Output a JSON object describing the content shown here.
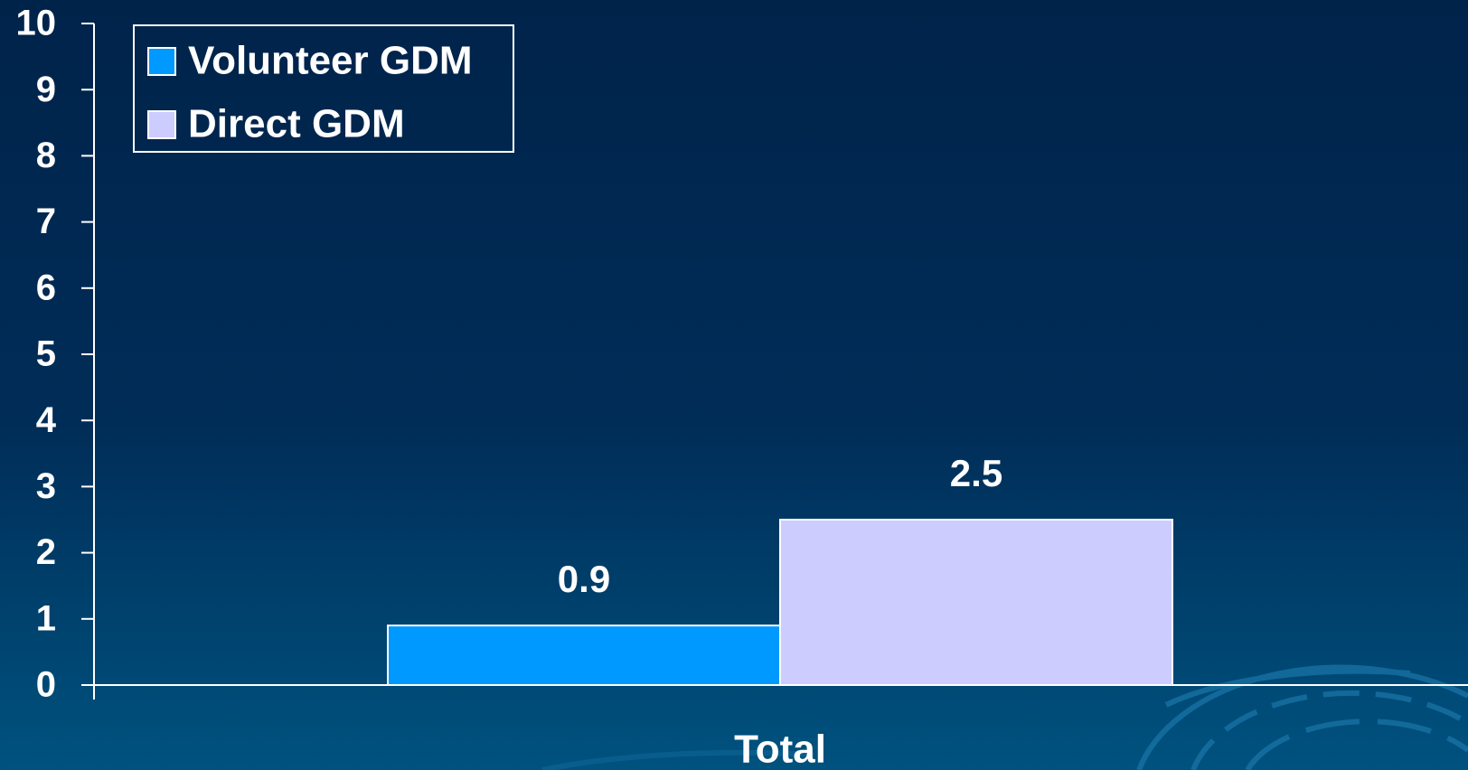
{
  "chart_data": {
    "type": "bar",
    "categories": [
      "Total"
    ],
    "series": [
      {
        "name": "Volunteer GDM",
        "color": "#0099ff",
        "values": [
          0.9
        ]
      },
      {
        "name": "Direct GDM",
        "color": "#ccccff",
        "values": [
          2.5
        ]
      }
    ],
    "ylim": [
      0,
      10
    ],
    "yticks": [
      0,
      1,
      2,
      3,
      4,
      5,
      6,
      7,
      8,
      9,
      10
    ],
    "legend": "top-left",
    "data_labels": true
  }
}
